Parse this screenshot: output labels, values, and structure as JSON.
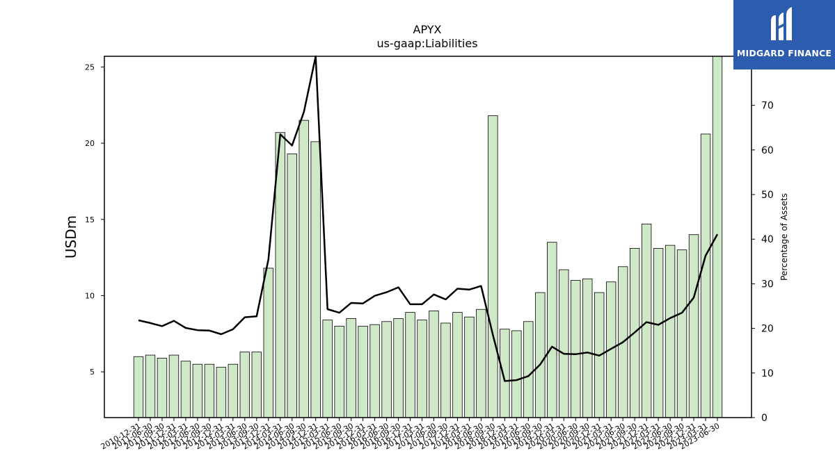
{
  "title": "APYX",
  "subtitle": "us-gaap:Liabilities",
  "logo": {
    "text": "MIDGARD FINANCE",
    "icon": "midgard-logo-icon",
    "color": "#2b5cad"
  },
  "chart_data": {
    "type": "bar",
    "title": "APYX",
    "subtitle": "us-gaap:Liabilities",
    "ylabel": "USDm",
    "y2label": "Percentage of Assets",
    "ylim": [
      2.0,
      25.7
    ],
    "y2lim": [
      0,
      81
    ],
    "yticks": [
      5,
      10,
      15,
      20,
      25
    ],
    "y2ticks": [
      0,
      10,
      20,
      30,
      40,
      50,
      60,
      70
    ],
    "bar_color": "#cfe8c8",
    "line_color": "#000000",
    "grid": false,
    "categories": [
      "2010-12-31",
      "2011-06-30",
      "2011-09-30",
      "2011-12-31",
      "2012-03-31",
      "2012-06-30",
      "2012-09-30",
      "2012-12-31",
      "2013-03-31",
      "2013-06-30",
      "2013-09-30",
      "2013-12-31",
      "2014-03-31",
      "2014-06-30",
      "2014-09-30",
      "2014-12-31",
      "2015-03-31",
      "2015-06-30",
      "2015-09-30",
      "2015-12-31",
      "2016-03-31",
      "2016-06-30",
      "2016-09-30",
      "2016-12-31",
      "2017-03-31",
      "2017-06-30",
      "2017-09-30",
      "2017-12-31",
      "2018-03-31",
      "2018-06-30",
      "2018-09-30",
      "2018-12-31",
      "2019-03-31",
      "2019-06-30",
      "2019-09-30",
      "2019-12-31",
      "2020-03-31",
      "2020-06-30",
      "2020-09-30",
      "2020-12-31",
      "2021-03-31",
      "2021-06-30",
      "2021-09-30",
      "2021-12-31",
      "2022-03-31",
      "2022-06-30",
      "2022-09-30",
      "2022-12-31",
      "2023-03-31",
      "2023-06-30"
    ],
    "series": [
      {
        "type": "bar",
        "axis": "left",
        "values": [
          6.0,
          6.1,
          5.9,
          6.1,
          5.7,
          5.5,
          5.5,
          5.3,
          5.5,
          6.3,
          6.3,
          11.8,
          20.7,
          19.3,
          21.5,
          20.1,
          8.4,
          8.0,
          8.5,
          8.0,
          8.1,
          8.3,
          8.5,
          8.9,
          8.4,
          9.0,
          8.2,
          8.9,
          8.6,
          9.1,
          21.8,
          7.8,
          7.7,
          8.3,
          10.2,
          13.5,
          11.7,
          11.0,
          11.1,
          10.2,
          10.9,
          11.9,
          13.1,
          14.7,
          13.1,
          13.3,
          13.0,
          14.0,
          20.6,
          25.9
        ]
      },
      {
        "type": "line",
        "axis": "right",
        "values": [
          21.8,
          21.2,
          20.5,
          21.7,
          20.1,
          19.6,
          19.5,
          18.7,
          19.8,
          22.5,
          22.7,
          35.5,
          63.5,
          61.0,
          68.5,
          81.0,
          24.3,
          23.5,
          25.7,
          25.6,
          27.3,
          28.1,
          29.2,
          25.4,
          25.4,
          27.6,
          26.5,
          28.9,
          28.7,
          29.5,
          18.5,
          8.2,
          8.4,
          9.3,
          11.9,
          15.9,
          14.3,
          14.2,
          14.6,
          13.9,
          15.4,
          16.9,
          19.1,
          21.4,
          20.8,
          22.3,
          23.5,
          26.9,
          36.3,
          41.1
        ]
      }
    ]
  }
}
